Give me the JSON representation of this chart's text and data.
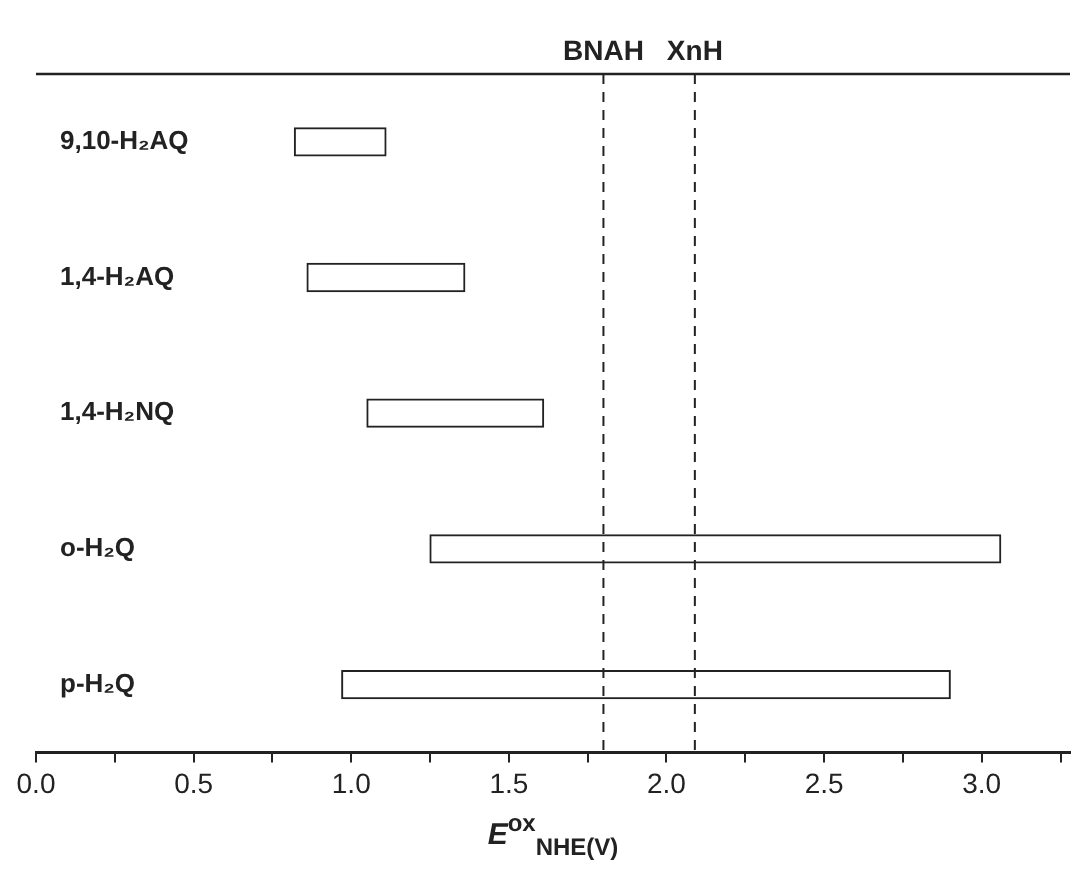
{
  "chart_data": {
    "type": "bar",
    "orientation": "horizontal",
    "xlabel": "E$^{ox}$$_{NHE(V)}$",
    "categories": [
      "9,10-H₂AQ",
      "1,4-H₂AQ",
      "1,4-H₂NQ",
      "o-H₂Q",
      "p-H₂Q"
    ],
    "base": [
      0.82,
      0.86,
      1.05,
      1.25,
      0.97
    ],
    "values": [
      0.29,
      0.5,
      0.56,
      1.81,
      1.93
    ],
    "color": "#ffffff",
    "xlim": [
      0,
      3.28
    ],
    "xticks": [
      {
        "value": 0,
        "label": "0.0"
      },
      {
        "value": 0.25,
        "label": null
      },
      {
        "value": 0.5,
        "label": "0.5"
      },
      {
        "value": 0.75,
        "label": null
      },
      {
        "value": 1,
        "label": "1.0"
      },
      {
        "value": 1.25,
        "label": null
      },
      {
        "value": 1.5,
        "label": "1.5"
      },
      {
        "value": 1.75,
        "label": null
      },
      {
        "value": 2,
        "label": "2.0"
      },
      {
        "value": 2.25,
        "label": null
      },
      {
        "value": 2.5,
        "label": "2.5"
      },
      {
        "value": 2.75,
        "label": null
      },
      {
        "value": 3,
        "label": "3.0"
      },
      {
        "value": 3.25,
        "label": null
      }
    ],
    "ref_lines": [
      {
        "axis": "x",
        "value": 1.8,
        "label": "BNAH",
        "line_style": "dashed"
      },
      {
        "axis": "x",
        "value": 2.09,
        "label": "XnH",
        "line_style": "dashed"
      }
    ],
    "grid": false,
    "legend": false
  }
}
